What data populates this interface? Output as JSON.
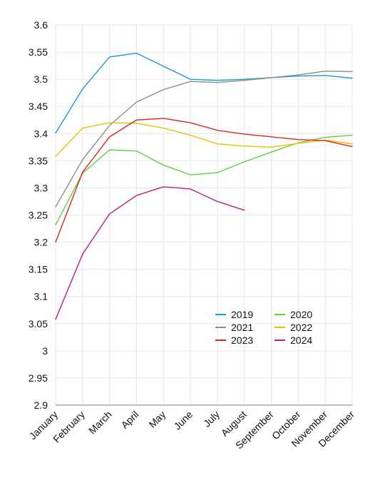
{
  "chart_data": {
    "type": "line",
    "title": "",
    "xlabel": "",
    "ylabel": "",
    "categories": [
      "January",
      "February",
      "March",
      "April",
      "May",
      "June",
      "July",
      "August",
      "September",
      "October",
      "November",
      "December"
    ],
    "ylim": [
      2.9,
      3.6
    ],
    "yticks": [
      "2.9",
      "2.95",
      "3",
      "3.05",
      "3.1",
      "3.15",
      "3.2",
      "3.25",
      "3.3",
      "3.35",
      "3.4",
      "3.45",
      "3.5",
      "3.55",
      "3.6"
    ],
    "grid": true,
    "legend_position": "lower-right",
    "series": [
      {
        "name": "2019",
        "color": "#1a9ad6",
        "values": [
          3.401,
          3.482,
          3.541,
          3.548,
          3.524,
          3.5,
          3.498,
          3.5,
          3.503,
          3.506,
          3.507,
          3.502
        ]
      },
      {
        "name": "2020",
        "color": "#66cc44",
        "values": [
          3.232,
          3.327,
          3.37,
          3.368,
          3.342,
          3.324,
          3.328,
          3.348,
          3.366,
          3.383,
          3.393,
          3.397
        ]
      },
      {
        "name": "2021",
        "color": "#8c8c8c",
        "values": [
          3.265,
          3.352,
          3.415,
          3.458,
          3.481,
          3.496,
          3.494,
          3.498,
          3.503,
          3.508,
          3.515,
          3.514
        ]
      },
      {
        "name": "2022",
        "color": "#e8c200",
        "values": [
          3.358,
          3.41,
          3.42,
          3.419,
          3.41,
          3.397,
          3.381,
          3.377,
          3.375,
          3.382,
          3.388,
          3.381
        ]
      },
      {
        "name": "2023",
        "color": "#d62a1e",
        "values": [
          3.2,
          3.329,
          3.394,
          3.425,
          3.428,
          3.42,
          3.406,
          3.399,
          3.394,
          3.389,
          3.387,
          3.376
        ]
      },
      {
        "name": "2024",
        "color": "#c01a7a",
        "values": [
          3.058,
          3.178,
          3.252,
          3.286,
          3.302,
          3.298,
          3.275,
          3.259,
          null,
          null,
          null,
          null
        ]
      }
    ]
  }
}
